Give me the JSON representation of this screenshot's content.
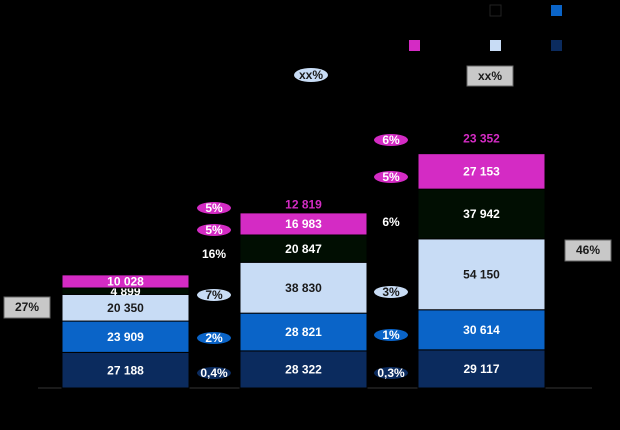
{
  "chart_data": {
    "type": "bar",
    "stacked": true,
    "series": [
      {
        "color": "#0b2b5e",
        "label_color": "#ffffff",
        "values": [
          27188,
          28322,
          29117
        ],
        "value_labels": [
          "27 188",
          "28 322",
          "29 117"
        ]
      },
      {
        "color": "#0a64c8",
        "label_color": "#ffffff",
        "values": [
          23909,
          28821,
          30614
        ],
        "value_labels": [
          "23 909",
          "28 821",
          "30 614"
        ]
      },
      {
        "color": "#c8dcf5",
        "label_color": "#1a1a1a",
        "values": [
          20350,
          38830,
          54150
        ],
        "value_labels": [
          "20 350",
          "38 830",
          "54 150"
        ]
      },
      {
        "color": "#010e02",
        "label_color": "#ffffff",
        "values": [
          4899,
          20847,
          37942
        ],
        "value_labels": [
          "4 899",
          "20 847",
          "37 942"
        ]
      },
      {
        "color": "#d42bc4",
        "label_color": "#ffffff",
        "values": [
          10028,
          16983,
          27153
        ],
        "value_labels": [
          "10 028",
          "16 983",
          "27 153"
        ]
      },
      {
        "color": "#000000",
        "label_color": "#d42bc4",
        "values": [
          null,
          12819,
          23352
        ],
        "value_labels": [
          null,
          "12 819",
          "23 352"
        ]
      }
    ],
    "ylim": [
      0,
      202328
    ],
    "growth_labels": [
      [
        "0,4%",
        "2%",
        "7%",
        "16%",
        "5%",
        "5%"
      ],
      [
        "0,3%",
        "1%",
        "3%",
        "6%",
        "5%",
        "6%"
      ]
    ],
    "share_labels": [
      "27%",
      "46%"
    ],
    "placeholder_labels": [
      "xx%",
      "xx%"
    ]
  }
}
